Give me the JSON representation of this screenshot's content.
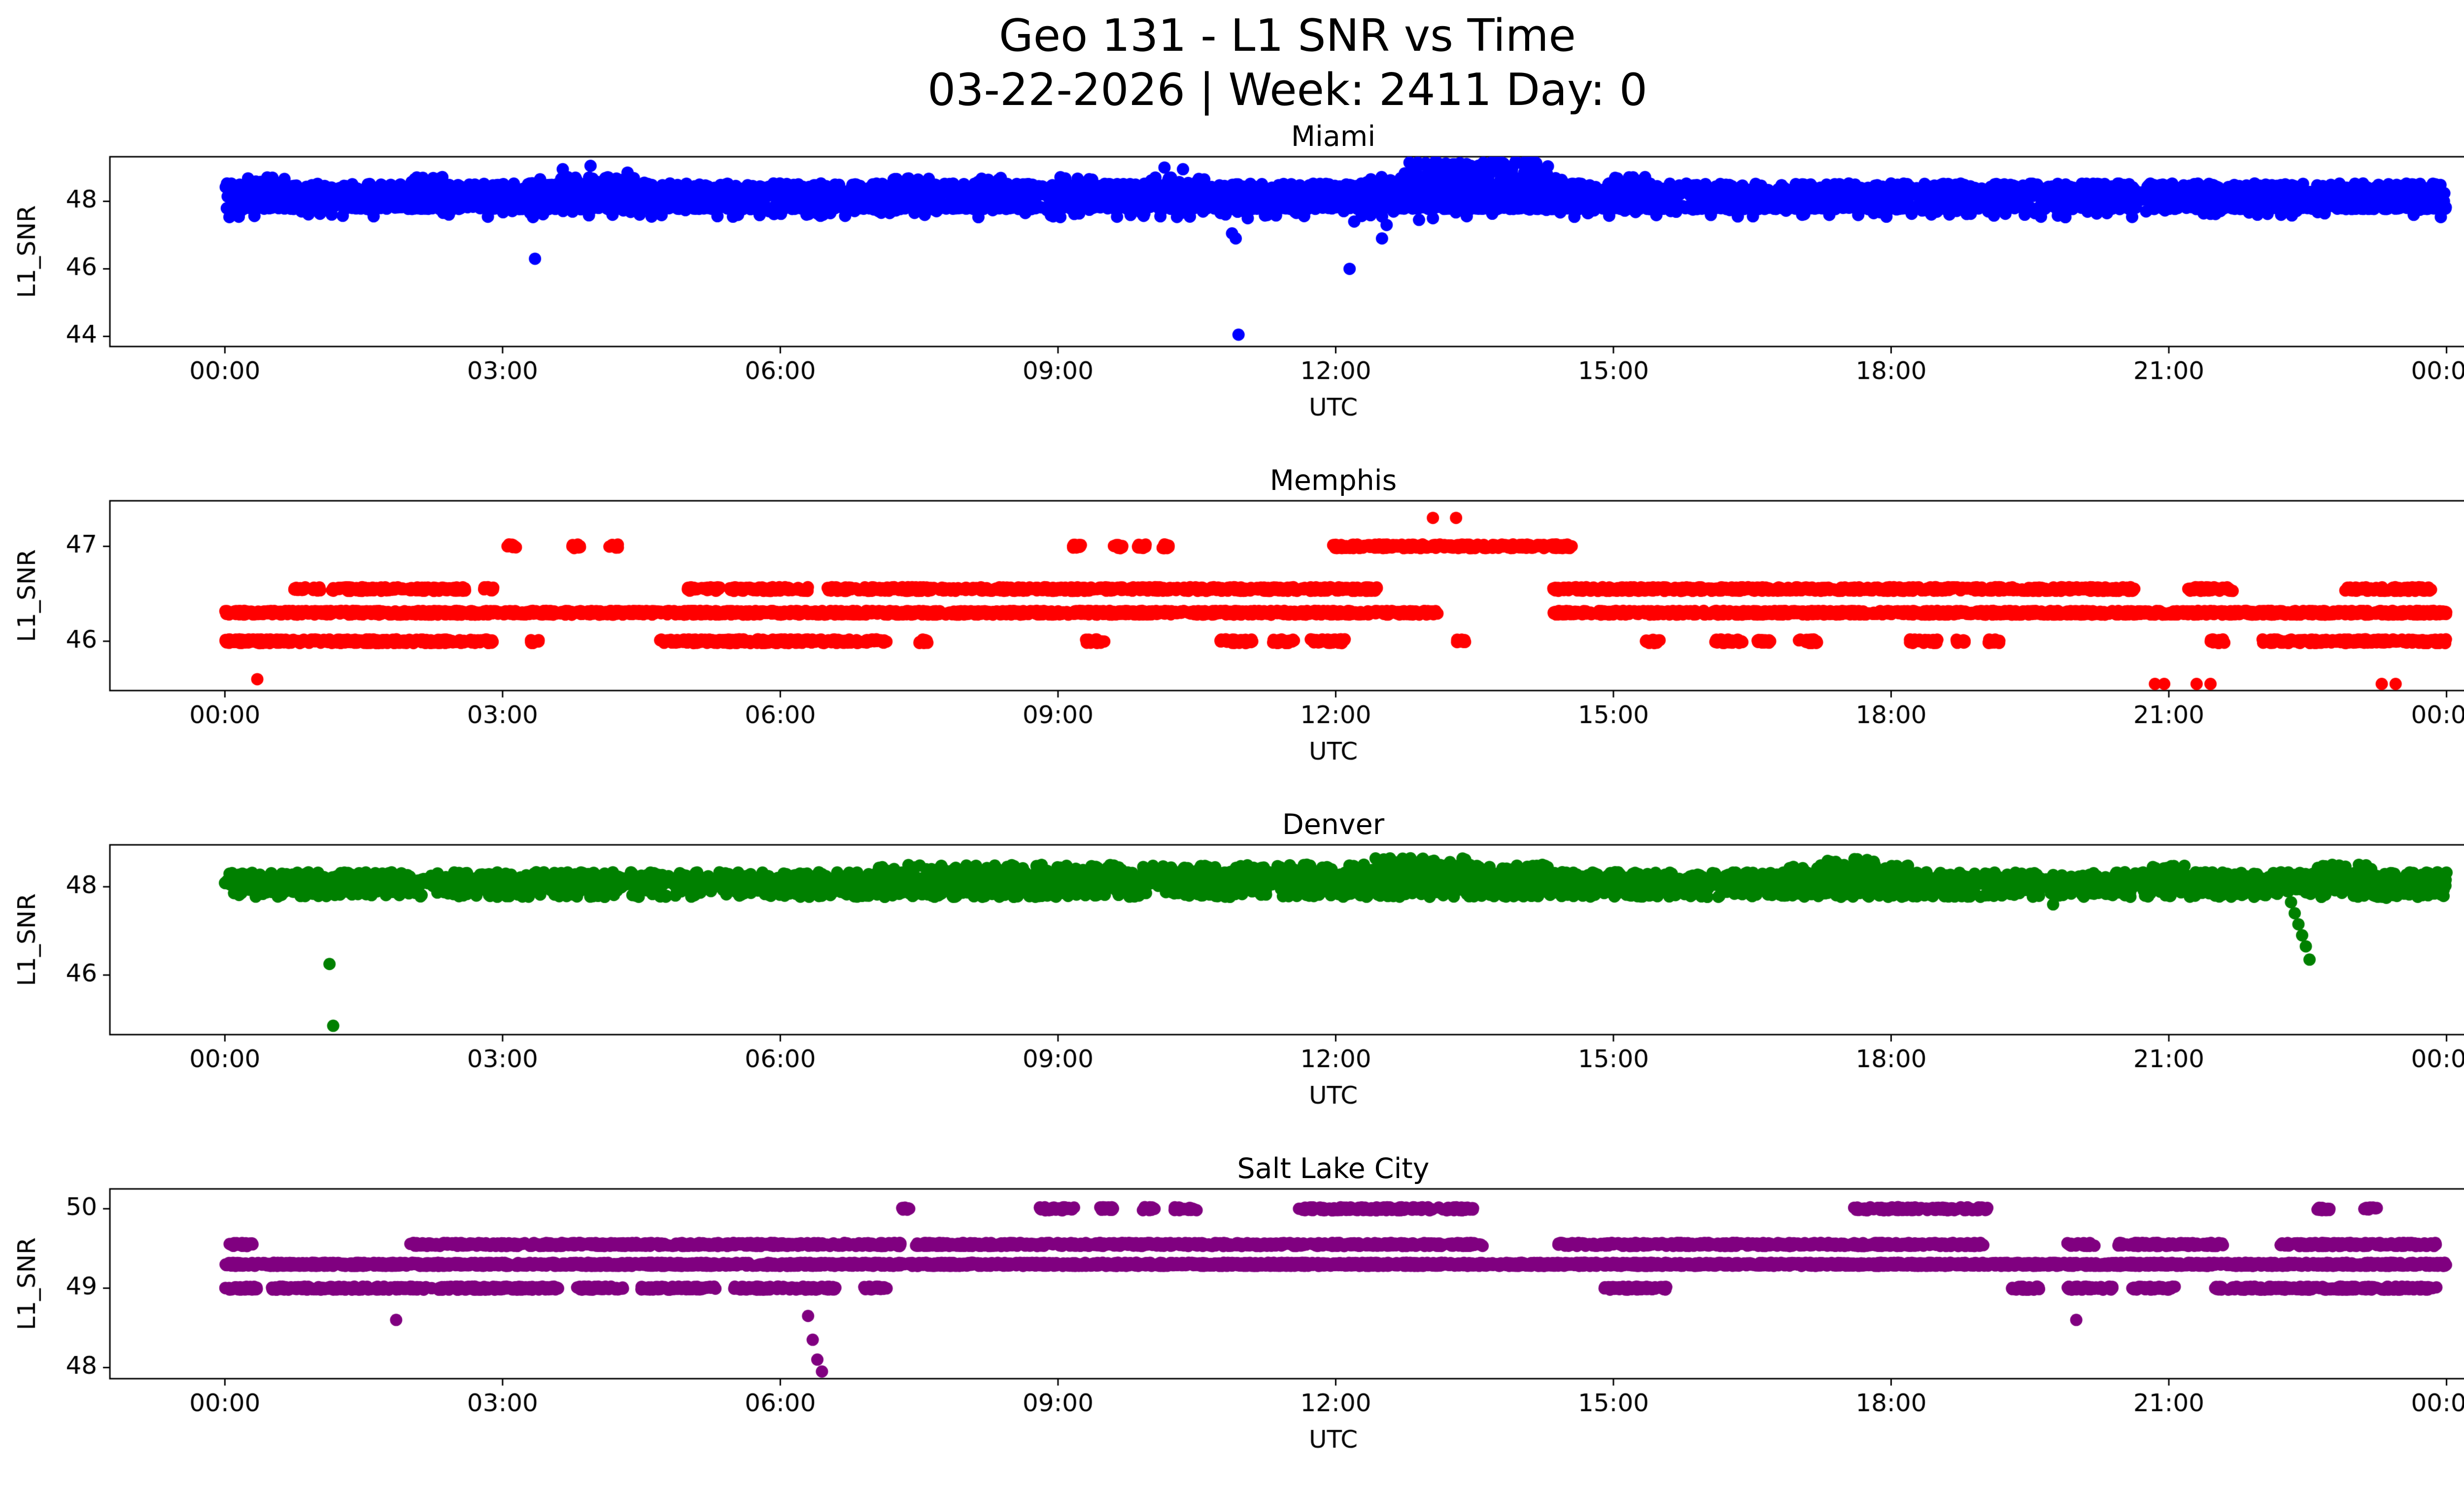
{
  "figure": {
    "title": "Geo 131 - L1 SNR vs Time",
    "subtitle": "03-22-2026 | Week: 2411 Day: 0"
  },
  "chart_data": [
    {
      "type": "scatter",
      "title": "Miami",
      "color": "#0000ff",
      "marker": "circle",
      "grid": false,
      "xlabel": "UTC",
      "ylabel": "L1_SNR",
      "x_tick_hours": [
        0,
        3,
        6,
        9,
        12,
        15,
        18,
        21,
        24
      ],
      "x_tick_labels": [
        "00:00",
        "03:00",
        "06:00",
        "09:00",
        "12:00",
        "15:00",
        "18:00",
        "21:00",
        "00:00"
      ],
      "y_ticks": [
        44,
        46,
        48
      ],
      "ylim": [
        43.7,
        49.32
      ],
      "bands": [
        {
          "y": 48.25,
          "jitter": 0.28,
          "pph": 130,
          "segments": [
            [
              0,
              24
            ]
          ]
        },
        {
          "y": 47.82,
          "jitter": 0.05,
          "pph": 60,
          "segments": [
            [
              0,
              24
            ]
          ]
        },
        {
          "y": 47.65,
          "jitter": 0.12,
          "pph": 8,
          "segments": [
            [
              0,
              24
            ]
          ]
        },
        {
          "y": 48.6,
          "jitter": 0.12,
          "pph": 25,
          "segments": [
            [
              0.2,
              0.7
            ],
            [
              2.0,
              2.4
            ],
            [
              3.3,
              4.6
            ],
            [
              7.2,
              7.7
            ],
            [
              8.0,
              8.4
            ],
            [
              9.0,
              9.4
            ],
            [
              10.0,
              10.6
            ],
            [
              12.3,
              14.6
            ],
            [
              15.0,
              15.4
            ]
          ]
        },
        {
          "y": 48.85,
          "jitter": 0.3,
          "pph": 60,
          "segments": [
            [
              12.7,
              14.3
            ]
          ]
        },
        {
          "y": 49.1,
          "jitter": 0.15,
          "pph": 18,
          "segments": [
            [
              12.9,
              14.2
            ]
          ]
        }
      ],
      "outliers": [
        [
          3.35,
          46.3
        ],
        [
          3.65,
          48.95
        ],
        [
          3.95,
          49.05
        ],
        [
          4.35,
          48.85
        ],
        [
          10.15,
          49.0
        ],
        [
          10.35,
          48.95
        ],
        [
          10.88,
          47.05
        ],
        [
          10.92,
          46.9
        ],
        [
          10.95,
          44.05
        ],
        [
          11.05,
          47.5
        ],
        [
          12.15,
          46.0
        ],
        [
          12.2,
          47.4
        ],
        [
          12.5,
          46.9
        ],
        [
          12.55,
          47.3
        ],
        [
          12.9,
          47.45
        ],
        [
          13.05,
          47.5
        ]
      ]
    },
    {
      "type": "scatter",
      "title": "Memphis",
      "color": "#ff0000",
      "marker": "circle",
      "grid": false,
      "xlabel": "UTC",
      "ylabel": "L1_SNR",
      "x_tick_hours": [
        0,
        3,
        6,
        9,
        12,
        15,
        18,
        21,
        24
      ],
      "x_tick_labels": [
        "00:00",
        "03:00",
        "06:00",
        "09:00",
        "12:00",
        "15:00",
        "18:00",
        "21:00",
        "00:00"
      ],
      "y_ticks": [
        46,
        47
      ],
      "ylim": [
        45.48,
        47.48
      ],
      "bands": [
        {
          "y": 46.3,
          "jitter": 0.02,
          "pph": 150,
          "segments": [
            [
              0,
              13.1
            ],
            [
              14.35,
              24
            ]
          ]
        },
        {
          "y": 46.0,
          "jitter": 0.02,
          "pph": 120,
          "segments": [
            [
              0,
              2.9
            ],
            [
              3.3,
              3.4
            ],
            [
              4.7,
              7.15
            ],
            [
              7.5,
              7.6
            ],
            [
              9.3,
              9.5
            ],
            [
              10.75,
              11.1
            ],
            [
              11.3,
              11.55
            ],
            [
              11.7,
              12.1
            ],
            [
              13.3,
              13.4
            ],
            [
              15.35,
              15.5
            ],
            [
              16.1,
              16.4
            ],
            [
              16.55,
              16.7
            ],
            [
              17.0,
              17.2
            ],
            [
              18.2,
              18.5
            ],
            [
              18.7,
              18.8
            ],
            [
              19.05,
              19.2
            ],
            [
              21.45,
              21.6
            ],
            [
              22.0,
              24
            ]
          ]
        },
        {
          "y": 46.55,
          "jitter": 0.02,
          "pph": 110,
          "segments": [
            [
              0.75,
              0.9
            ],
            [
              0.95,
              1.05
            ],
            [
              1.15,
              2.6
            ],
            [
              2.8,
              2.9
            ],
            [
              5.0,
              5.35
            ],
            [
              5.45,
              6.3
            ],
            [
              6.5,
              12.45
            ],
            [
              14.35,
              20.65
            ],
            [
              21.2,
              21.7
            ],
            [
              22.9,
              23.85
            ]
          ]
        },
        {
          "y": 47.0,
          "jitter": 0.02,
          "pph": 110,
          "segments": [
            [
              3.05,
              3.15
            ],
            [
              3.75,
              3.85
            ],
            [
              4.15,
              4.25
            ],
            [
              9.15,
              9.25
            ],
            [
              9.6,
              9.7
            ],
            [
              9.85,
              9.95
            ],
            [
              10.1,
              10.2
            ],
            [
              11.95,
              14.55
            ]
          ]
        }
      ],
      "outliers": [
        [
          0.35,
          45.6
        ],
        [
          13.05,
          47.3
        ],
        [
          13.3,
          47.3
        ],
        [
          20.85,
          45.55
        ],
        [
          20.95,
          45.55
        ],
        [
          21.3,
          45.55
        ],
        [
          21.45,
          45.55
        ],
        [
          23.3,
          45.55
        ],
        [
          23.45,
          45.55
        ]
      ]
    },
    {
      "type": "scatter",
      "title": "Denver",
      "color": "#008000",
      "marker": "circle",
      "grid": false,
      "xlabel": "UTC",
      "ylabel": "L1_SNR",
      "x_tick_hours": [
        0,
        3,
        6,
        9,
        12,
        15,
        18,
        21,
        24
      ],
      "x_tick_labels": [
        "00:00",
        "03:00",
        "06:00",
        "09:00",
        "12:00",
        "15:00",
        "18:00",
        "21:00",
        "00:00"
      ],
      "y_ticks": [
        46,
        48
      ],
      "ylim": [
        44.65,
        48.95
      ],
      "bands": [
        {
          "y": 48.05,
          "jitter": 0.28,
          "pph": 120,
          "segments": [
            [
              0,
              24
            ]
          ]
        },
        {
          "y": 48.12,
          "jitter": 0.07,
          "pph": 80,
          "segments": [
            [
              0,
              24
            ]
          ]
        },
        {
          "y": 48.35,
          "jitter": 0.15,
          "pph": 50,
          "segments": [
            [
              7.0,
              14.3
            ],
            [
              16.8,
              18.2
            ],
            [
              20.8,
              21.2
            ],
            [
              22.6,
              23.2
            ]
          ]
        },
        {
          "y": 48.55,
          "jitter": 0.1,
          "pph": 20,
          "segments": [
            [
              12.3,
              13.4
            ],
            [
              17.3,
              18.0
            ]
          ]
        }
      ],
      "outliers": [
        [
          1.13,
          46.25
        ],
        [
          1.17,
          44.85
        ],
        [
          19.75,
          47.6
        ],
        [
          21.5,
          47.8
        ],
        [
          22.28,
          47.9
        ],
        [
          22.32,
          47.65
        ],
        [
          22.36,
          47.4
        ],
        [
          22.4,
          47.15
        ],
        [
          22.44,
          46.9
        ],
        [
          22.48,
          46.65
        ],
        [
          22.52,
          46.35
        ],
        [
          23.35,
          47.75
        ]
      ]
    },
    {
      "type": "scatter",
      "title": "Salt Lake City",
      "color": "#800080",
      "marker": "circle",
      "grid": false,
      "xlabel": "UTC",
      "ylabel": "L1_SNR",
      "x_tick_hours": [
        0,
        3,
        6,
        9,
        12,
        15,
        18,
        21,
        24
      ],
      "x_tick_labels": [
        "00:00",
        "03:00",
        "06:00",
        "09:00",
        "12:00",
        "15:00",
        "18:00",
        "21:00",
        "00:00"
      ],
      "y_ticks": [
        48,
        49,
        50
      ],
      "ylim": [
        47.86,
        50.25
      ],
      "bands": [
        {
          "y": 49.3,
          "jitter": 0.02,
          "pph": 150,
          "segments": [
            [
              0,
              24
            ]
          ]
        },
        {
          "y": 49.55,
          "jitter": 0.02,
          "pph": 110,
          "segments": [
            [
              0.05,
              0.3
            ],
            [
              2.0,
              7.3
            ],
            [
              7.45,
              13.6
            ],
            [
              14.4,
              19.0
            ],
            [
              19.9,
              20.2
            ],
            [
              20.45,
              21.6
            ],
            [
              22.2,
              23.9
            ]
          ]
        },
        {
          "y": 49.0,
          "jitter": 0.02,
          "pph": 110,
          "segments": [
            [
              0.0,
              0.35
            ],
            [
              0.5,
              3.6
            ],
            [
              3.8,
              4.3
            ],
            [
              4.5,
              5.3
            ],
            [
              5.5,
              6.6
            ],
            [
              6.9,
              7.15
            ],
            [
              14.9,
              15.6
            ],
            [
              19.3,
              19.6
            ],
            [
              19.9,
              20.4
            ],
            [
              20.6,
              21.1
            ],
            [
              21.5,
              23.9
            ]
          ]
        },
        {
          "y": 50.0,
          "jitter": 0.02,
          "pph": 100,
          "segments": [
            [
              7.3,
              7.4
            ],
            [
              8.8,
              9.2
            ],
            [
              9.45,
              9.6
            ],
            [
              9.9,
              10.05
            ],
            [
              10.25,
              10.5
            ],
            [
              11.6,
              13.5
            ],
            [
              17.6,
              19.05
            ],
            [
              22.6,
              22.75
            ],
            [
              23.1,
              23.25
            ]
          ]
        }
      ],
      "outliers": [
        [
          1.85,
          48.6
        ],
        [
          6.3,
          48.65
        ],
        [
          6.35,
          48.35
        ],
        [
          6.4,
          48.1
        ],
        [
          6.45,
          47.95
        ],
        [
          20.0,
          48.6
        ]
      ]
    }
  ]
}
